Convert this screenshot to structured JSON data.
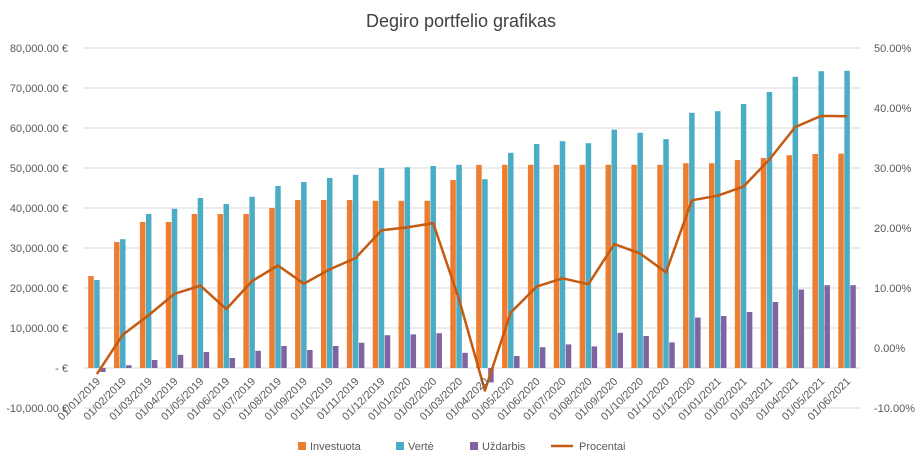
{
  "chart_data": {
    "type": "bar",
    "title": "Degiro portfelio grafikas",
    "categories": [
      "01/01/2019",
      "01/02/2019",
      "01/03/2019",
      "01/04/2019",
      "01/05/2019",
      "01/06/2019",
      "01/07/2019",
      "01/08/2019",
      "01/09/2019",
      "01/10/2019",
      "01/11/2019",
      "01/12/2019",
      "01/01/2020",
      "01/02/2020",
      "01/03/2020",
      "01/04/2020",
      "01/05/2020",
      "01/06/2020",
      "01/07/2020",
      "01/08/2020",
      "01/09/2020",
      "01/10/2020",
      "01/11/2020",
      "01/12/2020",
      "01/01/2021",
      "01/02/2021",
      "01/03/2021",
      "01/04/2021",
      "01/05/2021",
      "01/06/2021"
    ],
    "series": [
      {
        "name": "Investuota",
        "type": "bar",
        "axis": "left",
        "color": "#ED7D31",
        "values": [
          23000,
          31500,
          36500,
          36500,
          38500,
          38500,
          38500,
          40000,
          42000,
          42000,
          42000,
          41800,
          41800,
          41800,
          47000,
          50800,
          50800,
          50800,
          50800,
          50800,
          50800,
          50800,
          50800,
          51200,
          51200,
          52000,
          52500,
          53200,
          53500,
          53600
        ]
      },
      {
        "name": "Vertė",
        "type": "bar",
        "axis": "left",
        "color": "#4BACC6",
        "values": [
          22000,
          32200,
          38500,
          39800,
          42500,
          41000,
          42800,
          45500,
          46500,
          47500,
          48300,
          50000,
          50200,
          50500,
          50800,
          47200,
          53800,
          56000,
          56700,
          56200,
          59600,
          58800,
          57200,
          63800,
          64200,
          66000,
          69000,
          72800,
          74200,
          74300
        ]
      },
      {
        "name": "Uždarbis",
        "type": "bar",
        "axis": "left",
        "color": "#8064A2",
        "values": [
          -1000,
          700,
          2000,
          3300,
          4000,
          2500,
          4300,
          5500,
          4500,
          5500,
          6300,
          8200,
          8400,
          8700,
          3800,
          -3600,
          3000,
          5200,
          5900,
          5400,
          8800,
          8000,
          6400,
          12600,
          13000,
          14000,
          16500,
          19600,
          20700,
          20700
        ]
      },
      {
        "name": "Procentai",
        "type": "line",
        "axis": "right",
        "color": "#C55A11",
        "values": [
          -4.35,
          2.22,
          5.48,
          9.04,
          10.39,
          6.49,
          11.17,
          13.75,
          10.71,
          13.1,
          15.0,
          19.62,
          20.1,
          20.81,
          8.09,
          -7.09,
          5.91,
          10.24,
          11.61,
          10.63,
          17.32,
          15.75,
          12.6,
          24.61,
          25.39,
          26.92,
          31.43,
          36.84,
          38.69,
          38.62
        ]
      }
    ],
    "left_axis": {
      "min": -10000,
      "max": 80000,
      "step": 10000,
      "tick_labels": [
        "-10,000.00 €",
        "-   €",
        "10,000.00 €",
        "20,000.00 €",
        "30,000.00 €",
        "40,000.00 €",
        "50,000.00 €",
        "60,000.00 €",
        "70,000.00 €",
        "80,000.00 €"
      ]
    },
    "right_axis": {
      "min": -10,
      "max": 50,
      "step": 10,
      "tick_labels": [
        "-10.00%",
        "0.00%",
        "10.00%",
        "20.00%",
        "30.00%",
        "40.00%",
        "50.00%"
      ]
    },
    "grid": true,
    "legend_position": "bottom"
  }
}
